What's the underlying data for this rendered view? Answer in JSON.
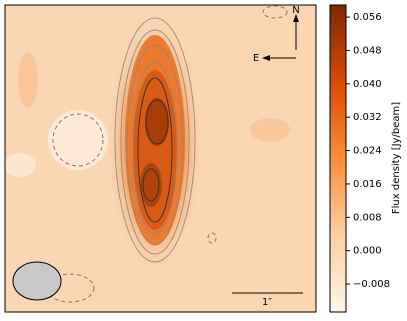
{
  "chart_data": {
    "type": "image",
    "colorbar_label": "Flux density [Jy/beam]",
    "colormap": [
      "#fff5eb",
      "#fdd0a2",
      "#fd8d3c",
      "#d94801",
      "#7f2704"
    ],
    "clim": [
      -0.0147,
      0.0589
    ],
    "cticks": [
      {
        "value": -0.008,
        "label": "−0.008"
      },
      {
        "value": 0,
        "label": "0.000"
      },
      0.008,
      0.016,
      0.024,
      0.032,
      {
        "value": 0.04,
        "label": "0.040"
      },
      0.048,
      0.056
    ],
    "annotations": {
      "north": "N",
      "east": "E",
      "scale": "1″"
    }
  }
}
